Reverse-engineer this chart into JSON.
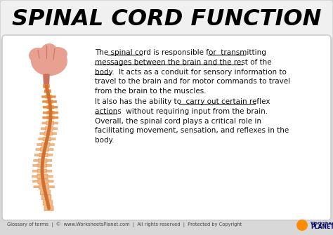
{
  "title": "SPINAL CORD FUNCTION",
  "title_color": "#000000",
  "title_bg": "#f0f0f0",
  "content_bg": "#ffffff",
  "outer_bg": "#d8d8d8",
  "brain_color": "#e8a090",
  "brain_dark": "#cc7060",
  "spine_light": "#f0b888",
  "spine_mid": "#e89040",
  "spine_dark": "#d07030",
  "footer_text": "Glossary of terms  |  ©  www.WorksheetsPlanet.com  |  All rights reserved  |  Protected by Copyright",
  "footer_color": "#444444"
}
